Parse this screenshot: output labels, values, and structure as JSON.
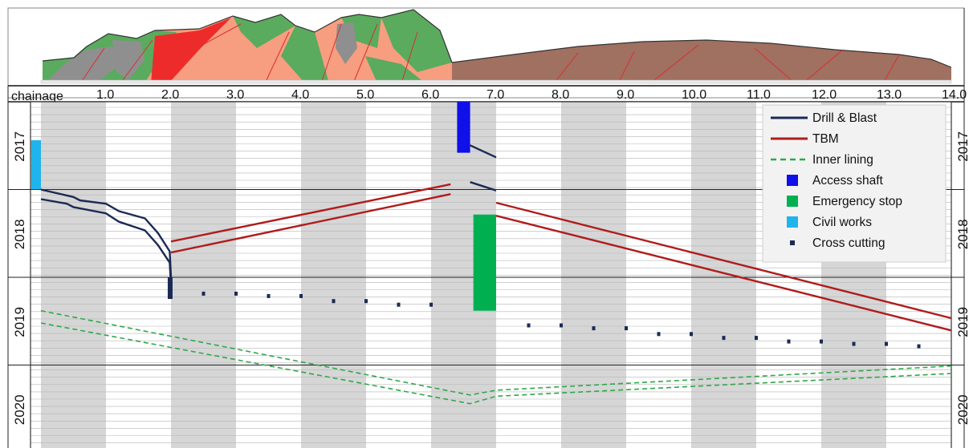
{
  "chart_data": {
    "type": "line",
    "title": "",
    "xlabel": "chainage",
    "ylabel": "",
    "xlim": [
      0.0,
      14.0
    ],
    "x_ticks": [
      "1.0",
      "2.0",
      "3.0",
      "4.0",
      "5.0",
      "6.0",
      "7.0",
      "8.0",
      "9.0",
      "10.0",
      "11.0",
      "12.0",
      "13.0",
      "14.0"
    ],
    "y_range": [
      "2017-01-01",
      "2020-12-31"
    ],
    "years": [
      "2017",
      "2018",
      "2019",
      "2020"
    ],
    "grid": true,
    "legend_position": "top-right",
    "legend": [
      {
        "label": "Drill & Blast",
        "kind": "line",
        "color": "#1b2a55"
      },
      {
        "label": "TBM",
        "kind": "line",
        "color": "#b01c1c"
      },
      {
        "label": "Inner lining",
        "kind": "dashed",
        "color": "#2ea84a"
      },
      {
        "label": "Access shaft",
        "kind": "box",
        "color": "#1010e8"
      },
      {
        "label": "Emergency stop",
        "kind": "box",
        "color": "#00b050"
      },
      {
        "label": "Civil works",
        "kind": "box",
        "color": "#1fb4ec"
      },
      {
        "label": "Cross cutting",
        "kind": "dot",
        "color": "#1b2a55"
      }
    ],
    "series": [
      {
        "name": "Drill & Blast",
        "color": "#1b2a55",
        "style": "solid",
        "lines": [
          [
            [
              0.0,
              "2018-01-01"
            ],
            [
              0.5,
              "2018-02-01"
            ],
            [
              0.6,
              "2018-02-15"
            ],
            [
              1.0,
              "2018-03-01"
            ],
            [
              1.2,
              "2018-04-01"
            ],
            [
              1.6,
              "2018-05-01"
            ],
            [
              1.8,
              "2018-07-01"
            ],
            [
              1.98,
              "2018-09-15"
            ],
            [
              2.0,
              "2018-12-31"
            ]
          ],
          [
            [
              0.0,
              "2018-02-10"
            ],
            [
              0.4,
              "2018-03-01"
            ],
            [
              0.5,
              "2018-03-15"
            ],
            [
              1.0,
              "2018-04-10"
            ],
            [
              1.2,
              "2018-05-15"
            ],
            [
              1.6,
              "2018-06-20"
            ],
            [
              1.8,
              "2018-08-20"
            ],
            [
              1.98,
              "2018-11-01"
            ],
            [
              2.0,
              "2019-02-10"
            ]
          ],
          [
            [
              6.6,
              "2017-07-01"
            ],
            [
              7.0,
              "2017-08-20"
            ]
          ],
          [
            [
              6.6,
              "2017-12-01"
            ],
            [
              7.0,
              "2018-01-05"
            ]
          ]
        ]
      },
      {
        "name": "TBM",
        "color": "#b01c1c",
        "style": "solid",
        "lines": [
          [
            [
              2.0,
              "2018-08-05"
            ],
            [
              6.3,
              "2017-12-10"
            ]
          ],
          [
            [
              2.0,
              "2018-09-20"
            ],
            [
              6.3,
              "2018-01-20"
            ]
          ],
          [
            [
              7.0,
              "2018-02-25"
            ],
            [
              14.0,
              "2019-06-20"
            ]
          ],
          [
            [
              7.0,
              "2018-04-20"
            ],
            [
              14.0,
              "2019-08-10"
            ]
          ]
        ]
      },
      {
        "name": "Inner lining",
        "color": "#2ea84a",
        "style": "dashed",
        "lines": [
          [
            [
              0.0,
              "2019-05-20"
            ],
            [
              6.6,
              "2020-05-05"
            ],
            [
              7.0,
              "2020-04-15"
            ],
            [
              14.0,
              "2020-01-05"
            ]
          ],
          [
            [
              0.0,
              "2019-07-10"
            ],
            [
              6.6,
              "2020-06-10"
            ],
            [
              7.0,
              "2020-05-10"
            ],
            [
              14.0,
              "2020-02-05"
            ]
          ]
        ]
      }
    ],
    "boxes": [
      {
        "name": "Civil works",
        "color": "#1fb4ec",
        "x": [
          -0.15,
          0.0
        ],
        "y": [
          "2017-06-10",
          "2017-12-31"
        ]
      },
      {
        "name": "Access shaft",
        "color": "#1010e8",
        "x": [
          6.4,
          6.6
        ],
        "y": [
          "2017-01-01",
          "2017-08-01"
        ]
      },
      {
        "name": "Emergency stop",
        "color": "#00b050",
        "x": [
          6.65,
          7.0
        ],
        "y": [
          "2018-04-15",
          "2019-05-20"
        ]
      }
    ],
    "cross_cutting": [
      [
        2.5,
        "2019-03-10"
      ],
      [
        3.0,
        "2019-03-10"
      ],
      [
        3.5,
        "2019-03-20"
      ],
      [
        4.0,
        "2019-03-20"
      ],
      [
        4.5,
        "2019-04-10"
      ],
      [
        5.0,
        "2019-04-10"
      ],
      [
        5.5,
        "2019-04-25"
      ],
      [
        6.0,
        "2019-04-25"
      ],
      [
        7.5,
        "2019-07-20"
      ],
      [
        8.0,
        "2019-07-20"
      ],
      [
        8.5,
        "2019-08-01"
      ],
      [
        9.0,
        "2019-08-01"
      ],
      [
        9.5,
        "2019-08-25"
      ],
      [
        10.0,
        "2019-08-25"
      ],
      [
        10.5,
        "2019-09-10"
      ],
      [
        11.0,
        "2019-09-10"
      ],
      [
        11.5,
        "2019-09-25"
      ],
      [
        12.0,
        "2019-09-25"
      ],
      [
        12.5,
        "2019-10-05"
      ],
      [
        13.0,
        "2019-10-05"
      ],
      [
        13.5,
        "2019-10-15"
      ]
    ],
    "profile": {
      "left_segment_x": [
        0.0,
        6.3
      ],
      "right_segment_x": [
        6.3,
        14.0
      ],
      "colors": {
        "green": "#5aab5e",
        "salmon": "#f79d80",
        "grey": "#8f8f8f",
        "red": "#ee2b2b",
        "brown": "#a07060",
        "line": "#d83030"
      }
    }
  }
}
